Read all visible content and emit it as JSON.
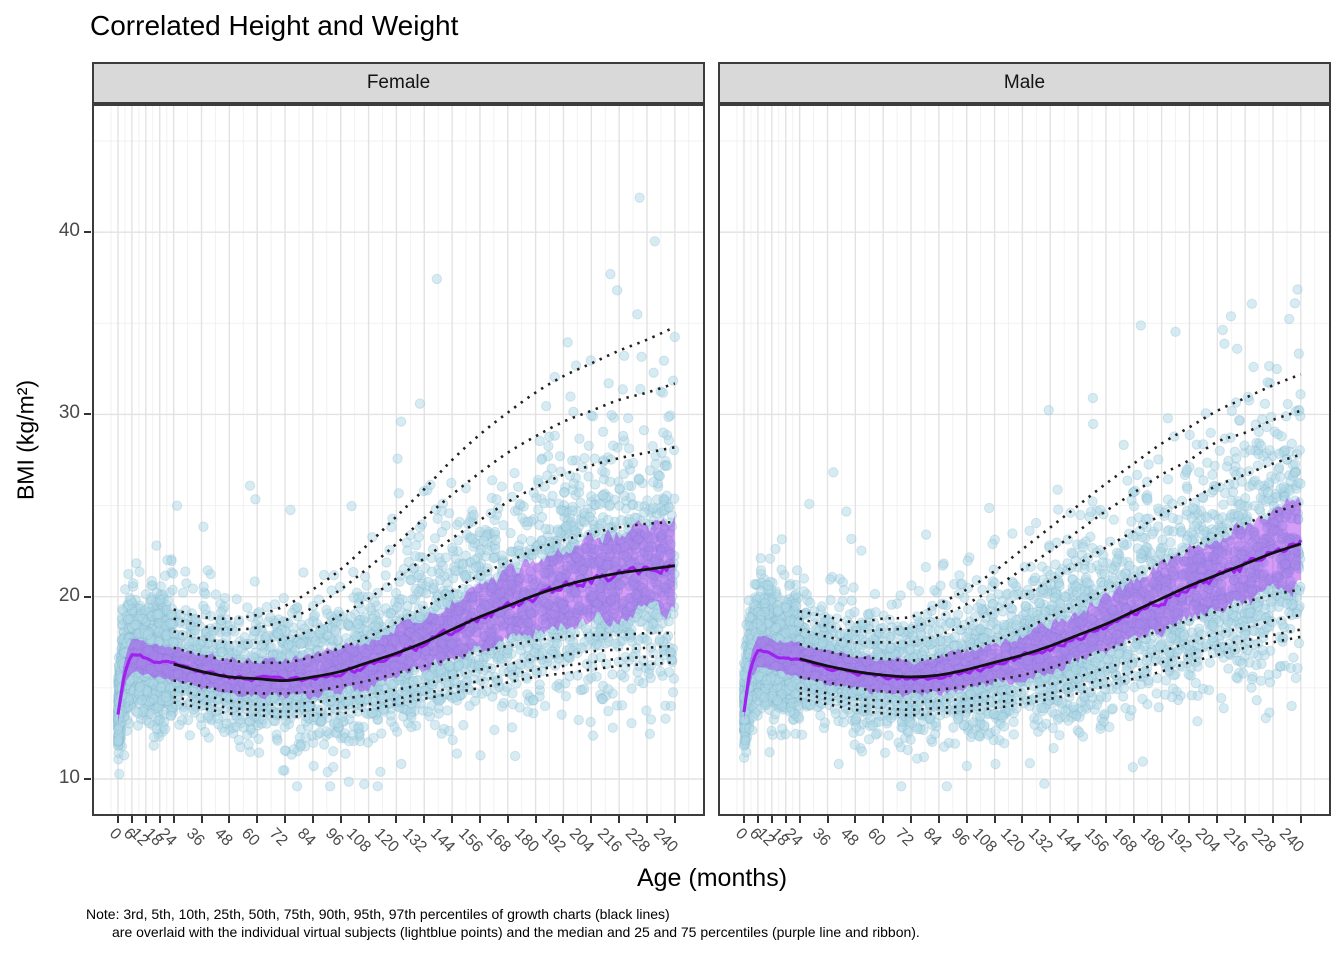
{
  "chart_data": {
    "type": "scatter",
    "title": "Correlated Height and Weight",
    "xlabel": "Age (months)",
    "ylabel": "BMI (kg/m²)",
    "facets": [
      {
        "key": "female",
        "label": "Female"
      },
      {
        "key": "male",
        "label": "Male"
      }
    ],
    "x_ticks": [
      0,
      6,
      12,
      18,
      24,
      36,
      48,
      60,
      72,
      84,
      96,
      108,
      120,
      132,
      144,
      156,
      168,
      180,
      192,
      204,
      216,
      228,
      240
    ],
    "x_minor_extra": [
      -3,
      246
    ],
    "y_ticks": [
      10,
      20,
      30,
      40
    ],
    "y_minor": [
      15,
      25,
      35,
      45
    ],
    "xlim": [
      -11.2,
      253
    ],
    "ylim": [
      7.97,
      47.03
    ],
    "grid": {
      "major_color": "#e2e2e2",
      "minor_color": "#f0f0f0"
    },
    "growth_chart": {
      "ages": [
        24,
        36,
        48,
        60,
        72,
        84,
        96,
        108,
        120,
        132,
        144,
        156,
        168,
        180,
        192,
        204,
        216,
        228,
        240
      ],
      "percentile_labels": [
        "3rd",
        "5th",
        "10th",
        "25th",
        "50th",
        "75th",
        "90th",
        "95th",
        "97th"
      ],
      "style": {
        "line_color": "#222222",
        "median_color": "#101010"
      },
      "female": {
        "p3": [
          14.2,
          13.9,
          13.6,
          13.5,
          13.4,
          13.5,
          13.6,
          13.8,
          14.1,
          14.4,
          14.7,
          15.0,
          15.3,
          15.6,
          15.8,
          16.0,
          16.2,
          16.3,
          16.4
        ],
        "p5": [
          14.5,
          14.2,
          13.9,
          13.8,
          13.7,
          13.8,
          13.9,
          14.1,
          14.4,
          14.7,
          15.0,
          15.4,
          15.7,
          16.0,
          16.2,
          16.4,
          16.6,
          16.7,
          16.8
        ],
        "p10": [
          14.9,
          14.6,
          14.3,
          14.1,
          14.1,
          14.2,
          14.4,
          14.6,
          14.9,
          15.2,
          15.6,
          16.0,
          16.3,
          16.6,
          16.8,
          17.0,
          17.1,
          17.2,
          17.3
        ],
        "p25": [
          15.4,
          15.1,
          14.8,
          14.7,
          14.7,
          14.8,
          15.1,
          15.4,
          15.8,
          16.2,
          16.6,
          17.0,
          17.3,
          17.6,
          17.8,
          17.9,
          17.9,
          18.0,
          18.0
        ],
        "p50": [
          16.3,
          15.9,
          15.6,
          15.5,
          15.4,
          15.6,
          15.9,
          16.4,
          16.9,
          17.5,
          18.2,
          18.9,
          19.5,
          20.1,
          20.6,
          21.0,
          21.3,
          21.5,
          21.7
        ],
        "p75": [
          17.2,
          16.8,
          16.5,
          16.4,
          16.4,
          16.7,
          17.2,
          17.8,
          18.6,
          19.4,
          20.3,
          21.2,
          21.9,
          22.6,
          23.1,
          23.5,
          23.8,
          24.0,
          24.1
        ],
        "p90": [
          18.1,
          17.7,
          17.5,
          17.5,
          17.7,
          18.2,
          19.0,
          19.9,
          21.0,
          22.1,
          23.2,
          24.2,
          25.2,
          26.0,
          26.7,
          27.2,
          27.6,
          27.9,
          28.2
        ],
        "p95": [
          18.8,
          18.4,
          18.2,
          18.3,
          18.7,
          19.4,
          20.4,
          21.6,
          22.9,
          24.3,
          25.6,
          26.8,
          27.9,
          28.8,
          29.6,
          30.2,
          30.8,
          31.2,
          31.7
        ],
        "p97": [
          19.3,
          18.9,
          18.8,
          19.0,
          19.5,
          20.4,
          21.5,
          22.9,
          24.4,
          25.9,
          27.5,
          28.9,
          30.1,
          31.2,
          32.1,
          32.8,
          33.5,
          34.1,
          34.8
        ]
      },
      "male": {
        "p3": [
          14.4,
          14.1,
          13.8,
          13.6,
          13.5,
          13.6,
          13.7,
          13.9,
          14.1,
          14.4,
          14.7,
          15.1,
          15.5,
          15.9,
          16.4,
          16.8,
          17.2,
          17.5,
          17.8
        ],
        "p5": [
          14.7,
          14.4,
          14.1,
          13.9,
          13.8,
          13.9,
          14.0,
          14.2,
          14.4,
          14.7,
          15.1,
          15.5,
          15.9,
          16.4,
          16.8,
          17.3,
          17.6,
          17.9,
          18.2
        ],
        "p10": [
          15.0,
          14.7,
          14.4,
          14.3,
          14.2,
          14.3,
          14.4,
          14.6,
          14.9,
          15.2,
          15.6,
          16.1,
          16.5,
          17.0,
          17.5,
          18.0,
          18.3,
          18.7,
          19.0
        ],
        "p25": [
          15.6,
          15.3,
          15.0,
          14.8,
          14.8,
          14.9,
          15.1,
          15.4,
          15.7,
          16.1,
          16.6,
          17.1,
          17.6,
          18.2,
          18.7,
          19.2,
          19.7,
          20.1,
          20.4
        ],
        "p50": [
          16.6,
          16.2,
          15.9,
          15.7,
          15.6,
          15.7,
          16.0,
          16.4,
          16.8,
          17.3,
          17.9,
          18.5,
          19.2,
          19.9,
          20.6,
          21.2,
          21.8,
          22.4,
          22.9
        ],
        "p75": [
          17.4,
          17.0,
          16.7,
          16.6,
          16.5,
          16.7,
          17.1,
          17.6,
          18.2,
          18.9,
          19.6,
          20.4,
          21.1,
          21.9,
          22.6,
          23.4,
          24.0,
          24.6,
          25.1
        ],
        "p90": [
          18.2,
          17.8,
          17.5,
          17.5,
          17.5,
          17.9,
          18.5,
          19.2,
          20.0,
          20.9,
          21.8,
          22.7,
          23.6,
          24.5,
          25.3,
          26.1,
          26.7,
          27.3,
          27.8
        ],
        "p95": [
          18.8,
          18.4,
          18.1,
          18.2,
          18.3,
          18.9,
          19.6,
          20.5,
          21.5,
          22.5,
          23.6,
          24.7,
          25.7,
          26.7,
          27.5,
          28.5,
          29.0,
          29.7,
          30.2
        ],
        "p97": [
          19.2,
          18.9,
          18.6,
          18.8,
          18.9,
          19.6,
          20.4,
          21.4,
          22.6,
          23.8,
          25.0,
          26.2,
          27.3,
          28.4,
          29.3,
          30.2,
          30.9,
          31.6,
          32.2
        ]
      }
    },
    "subjects": {
      "ages": [
        0,
        1,
        2,
        3,
        4,
        6,
        9,
        12,
        15,
        18,
        21,
        24,
        36,
        48,
        60,
        72,
        84,
        96,
        108,
        120,
        132,
        144,
        156,
        168,
        180,
        192,
        204,
        216,
        228,
        240
      ],
      "style": {
        "ribbon_color": "rgba(160,32,240,0.44)",
        "median_color": "#A020F0"
      },
      "female": {
        "median": [
          13.5,
          14.4,
          15.3,
          15.9,
          16.3,
          16.8,
          16.8,
          16.6,
          16.5,
          16.4,
          16.4,
          16.3,
          15.9,
          15.6,
          15.5,
          15.4,
          15.5,
          15.8,
          16.2,
          16.8,
          17.4,
          18.1,
          18.8,
          19.4,
          20.0,
          20.5,
          20.9,
          21.2,
          21.5,
          21.7
        ],
        "q25": [
          13.0,
          13.8,
          14.6,
          15.1,
          15.5,
          15.9,
          15.9,
          15.7,
          15.6,
          15.5,
          15.5,
          15.4,
          15.0,
          14.7,
          14.6,
          14.5,
          14.6,
          14.8,
          15.1,
          15.6,
          16.1,
          16.6,
          17.1,
          17.6,
          18.1,
          18.5,
          18.8,
          19.0,
          19.2,
          19.3
        ],
        "q75": [
          14.0,
          15.0,
          15.9,
          16.6,
          17.0,
          17.7,
          17.7,
          17.5,
          17.4,
          17.3,
          17.3,
          17.2,
          16.8,
          16.6,
          16.5,
          16.5,
          16.7,
          17.1,
          17.6,
          18.3,
          19.0,
          19.8,
          20.6,
          21.3,
          22.0,
          22.6,
          23.1,
          23.5,
          23.8,
          24.1
        ]
      },
      "male": {
        "median": [
          13.7,
          14.6,
          15.5,
          16.1,
          16.5,
          17.0,
          17.0,
          16.8,
          16.7,
          16.6,
          16.6,
          16.5,
          16.1,
          15.8,
          15.6,
          15.5,
          15.6,
          15.9,
          16.2,
          16.7,
          17.2,
          17.8,
          18.4,
          19.1,
          19.8,
          20.5,
          21.1,
          21.7,
          22.3,
          22.9
        ],
        "q25": [
          13.2,
          14.0,
          14.8,
          15.3,
          15.7,
          16.1,
          16.1,
          15.9,
          15.8,
          15.7,
          15.7,
          15.6,
          15.2,
          14.9,
          14.7,
          14.6,
          14.7,
          14.9,
          15.2,
          15.6,
          16.0,
          16.5,
          17.0,
          17.6,
          18.2,
          18.8,
          19.3,
          19.8,
          20.2,
          20.6
        ],
        "q75": [
          14.2,
          15.2,
          16.1,
          16.8,
          17.2,
          17.9,
          17.9,
          17.7,
          17.6,
          17.5,
          17.5,
          17.4,
          17.0,
          16.7,
          16.6,
          16.5,
          16.7,
          17.0,
          17.4,
          17.9,
          18.5,
          19.2,
          20.0,
          20.8,
          21.7,
          22.5,
          23.3,
          24.0,
          24.7,
          25.4
        ]
      }
    },
    "scatter": {
      "point_color": "#ADD8E6",
      "point_alpha": 0.5,
      "point_radius": 4.7,
      "n_per_facet": 5000,
      "young_frac": 0.3,
      "sigma0": 0.082,
      "sigma_slope": 0.00034,
      "wide_prob": 0.12,
      "wide_mult": {
        "female": 1.75,
        "male": 1.55
      },
      "seeds": {
        "female": 1234567,
        "male": 7654321
      }
    },
    "panel": {
      "border_color": "#3c3c3c",
      "strip_bg": "#d9d9d9",
      "axis_text_color": "#4a4a4a"
    }
  },
  "note": {
    "line1": "Note: 3rd, 5th, 10th, 25th, 50th, 75th, 90th, 95th, 97th percentiles of growth charts (black lines)",
    "line2": "are overlaid with the individual virtual subjects (lightblue points) and the median and 25 and 75 percentiles (purple line and ribbon)."
  }
}
